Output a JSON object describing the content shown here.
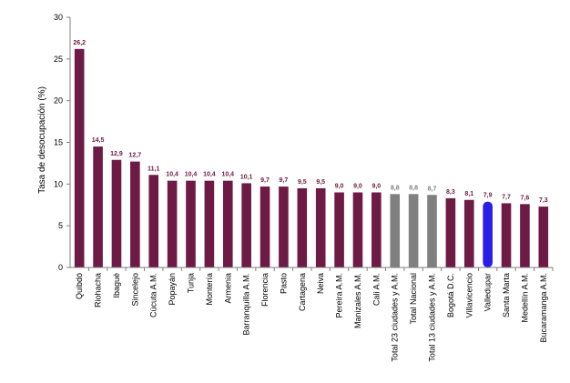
{
  "chart_data": {
    "type": "bar",
    "ylabel": "Tasa de desocupación (%)",
    "ylim": [
      0,
      30
    ],
    "yticks": [
      0,
      5,
      10,
      15,
      20,
      25,
      30
    ],
    "grid": false,
    "categories": [
      "Quibdó",
      "Riohacha",
      "Ibagué",
      "Sincelejo",
      "Cúcuta A.M.",
      "Popayán",
      "Tunja",
      "Montería",
      "Armenia",
      "Barranquilla A.M.",
      "Florencia",
      "Pasto",
      "Cartagena",
      "Neiva",
      "Pereira A.M.",
      "Manizales A.M.",
      "Cali A.M.",
      "Total 23 ciudades y A.M.",
      "Total Nacional",
      "Total 13 ciudades y A.M.",
      "Bogotá D.C.",
      "Villavicencio",
      "Valledupar",
      "Santa Marta",
      "Medellín A.M.",
      "Bucaramanga A.M."
    ],
    "values": [
      26.2,
      14.5,
      12.9,
      12.7,
      11.1,
      10.4,
      10.4,
      10.4,
      10.4,
      10.1,
      9.7,
      9.7,
      9.5,
      9.5,
      9.0,
      9.0,
      9.0,
      8.8,
      8.8,
      8.7,
      8.3,
      8.1,
      7.9,
      7.7,
      7.6,
      7.3
    ],
    "value_labels": [
      "26,2",
      "14,5",
      "12,9",
      "12,7",
      "11,1",
      "10,4",
      "10,4",
      "10,4",
      "10,4",
      "10,1",
      "9,7",
      "9,7",
      "9,5",
      "9,5",
      "9,0",
      "9,0",
      "9,0",
      "8,8",
      "8,8",
      "8,7",
      "8,3",
      "8,1",
      "7,9",
      "7,7",
      "7,6",
      "7,3"
    ],
    "bar_colors": [
      "#6d1a45",
      "#6d1a45",
      "#6d1a45",
      "#6d1a45",
      "#6d1a45",
      "#6d1a45",
      "#6d1a45",
      "#6d1a45",
      "#6d1a45",
      "#6d1a45",
      "#6d1a45",
      "#6d1a45",
      "#6d1a45",
      "#6d1a45",
      "#6d1a45",
      "#6d1a45",
      "#6d1a45",
      "#808080",
      "#808080",
      "#808080",
      "#6d1a45",
      "#6d1a45",
      "#2b1de8",
      "#6d1a45",
      "#6d1a45",
      "#6d1a45"
    ],
    "label_colors": [
      "#6d1a45",
      "#6d1a45",
      "#6d1a45",
      "#6d1a45",
      "#6d1a45",
      "#6d1a45",
      "#6d1a45",
      "#6d1a45",
      "#6d1a45",
      "#6d1a45",
      "#6d1a45",
      "#6d1a45",
      "#6d1a45",
      "#6d1a45",
      "#6d1a45",
      "#6d1a45",
      "#6d1a45",
      "#808080",
      "#808080",
      "#808080",
      "#6d1a45",
      "#6d1a45",
      "#6d1a45",
      "#6d1a45",
      "#6d1a45",
      "#6d1a45"
    ],
    "highlighted_category": "Valledupar"
  }
}
